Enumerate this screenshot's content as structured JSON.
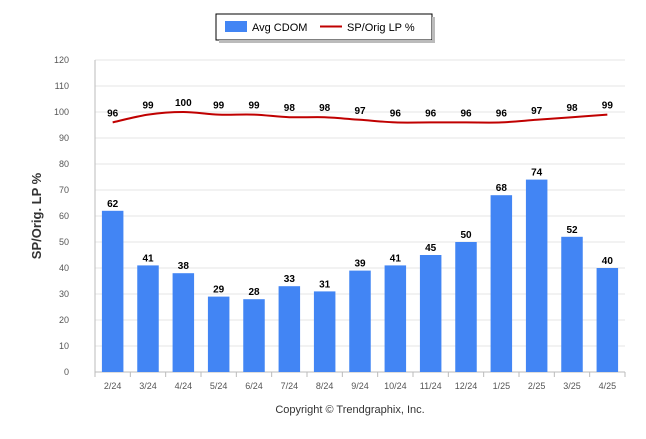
{
  "chart_data": {
    "type": "bar",
    "categories": [
      "2/24",
      "3/24",
      "4/24",
      "5/24",
      "6/24",
      "7/24",
      "8/24",
      "9/24",
      "10/24",
      "11/24",
      "12/24",
      "1/25",
      "2/25",
      "3/25",
      "4/25"
    ],
    "series": [
      {
        "name": "Avg CDOM",
        "type": "bar",
        "color": "#4285f4",
        "values": [
          62,
          41,
          38,
          29,
          28,
          33,
          31,
          39,
          41,
          45,
          50,
          68,
          74,
          52,
          40
        ]
      },
      {
        "name": "SP/Orig LP %",
        "type": "line",
        "color": "#c00000",
        "values": [
          96,
          99,
          100,
          99,
          99,
          98,
          98,
          97,
          96,
          96,
          96,
          96,
          97,
          98,
          99
        ]
      }
    ],
    "title": "",
    "xlabel": "",
    "ylabel": "SP/Orig. LP %",
    "ylim": [
      0,
      120
    ],
    "yticks": [
      0,
      10,
      20,
      30,
      40,
      50,
      60,
      70,
      80,
      90,
      100,
      110,
      120
    ],
    "grid": true,
    "legend_position": "top-center"
  },
  "footer": {
    "copyright": "Copyright © Trendgraphix, Inc."
  }
}
